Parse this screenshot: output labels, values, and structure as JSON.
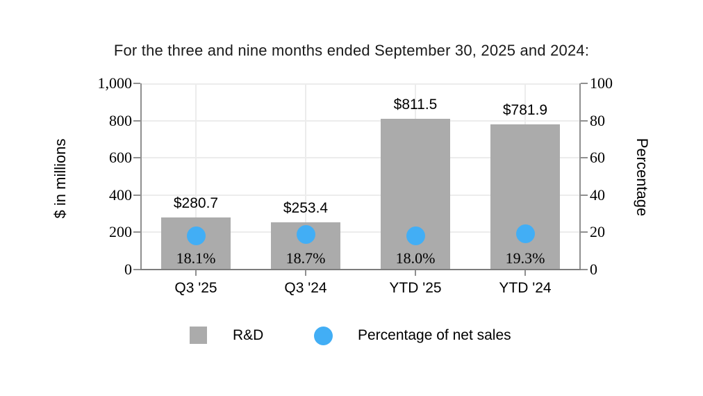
{
  "chart_data": {
    "type": "bar",
    "title": "For the three and nine months ended September 30, 2025 and 2024:",
    "categories": [
      "Q3 '25",
      "Q3 '24",
      "YTD '25",
      "YTD '24"
    ],
    "series": [
      {
        "name": "R&D",
        "type": "bar",
        "axis": "left",
        "values": [
          280.7,
          253.4,
          811.5,
          781.9
        ],
        "labels": [
          "$280.7",
          "$253.4",
          "$811.5",
          "$781.9"
        ],
        "color": "#ababab"
      },
      {
        "name": "Percentage of net sales",
        "type": "scatter",
        "axis": "right",
        "values": [
          18.1,
          18.7,
          18.0,
          19.3
        ],
        "labels": [
          "18.1%",
          "18.7%",
          "18.0%",
          "19.3%"
        ],
        "color": "#42aef5"
      }
    ],
    "left_axis": {
      "label": "$ in millions",
      "min": 0,
      "max": 1000,
      "ticks": [
        "1,000",
        "800",
        "600",
        "400",
        "200",
        "0"
      ]
    },
    "right_axis": {
      "label": "Percentage",
      "min": 0,
      "max": 100,
      "ticks": [
        "100",
        "80",
        "60",
        "40",
        "20",
        "0"
      ]
    },
    "grid": true,
    "legend_position": "bottom"
  }
}
